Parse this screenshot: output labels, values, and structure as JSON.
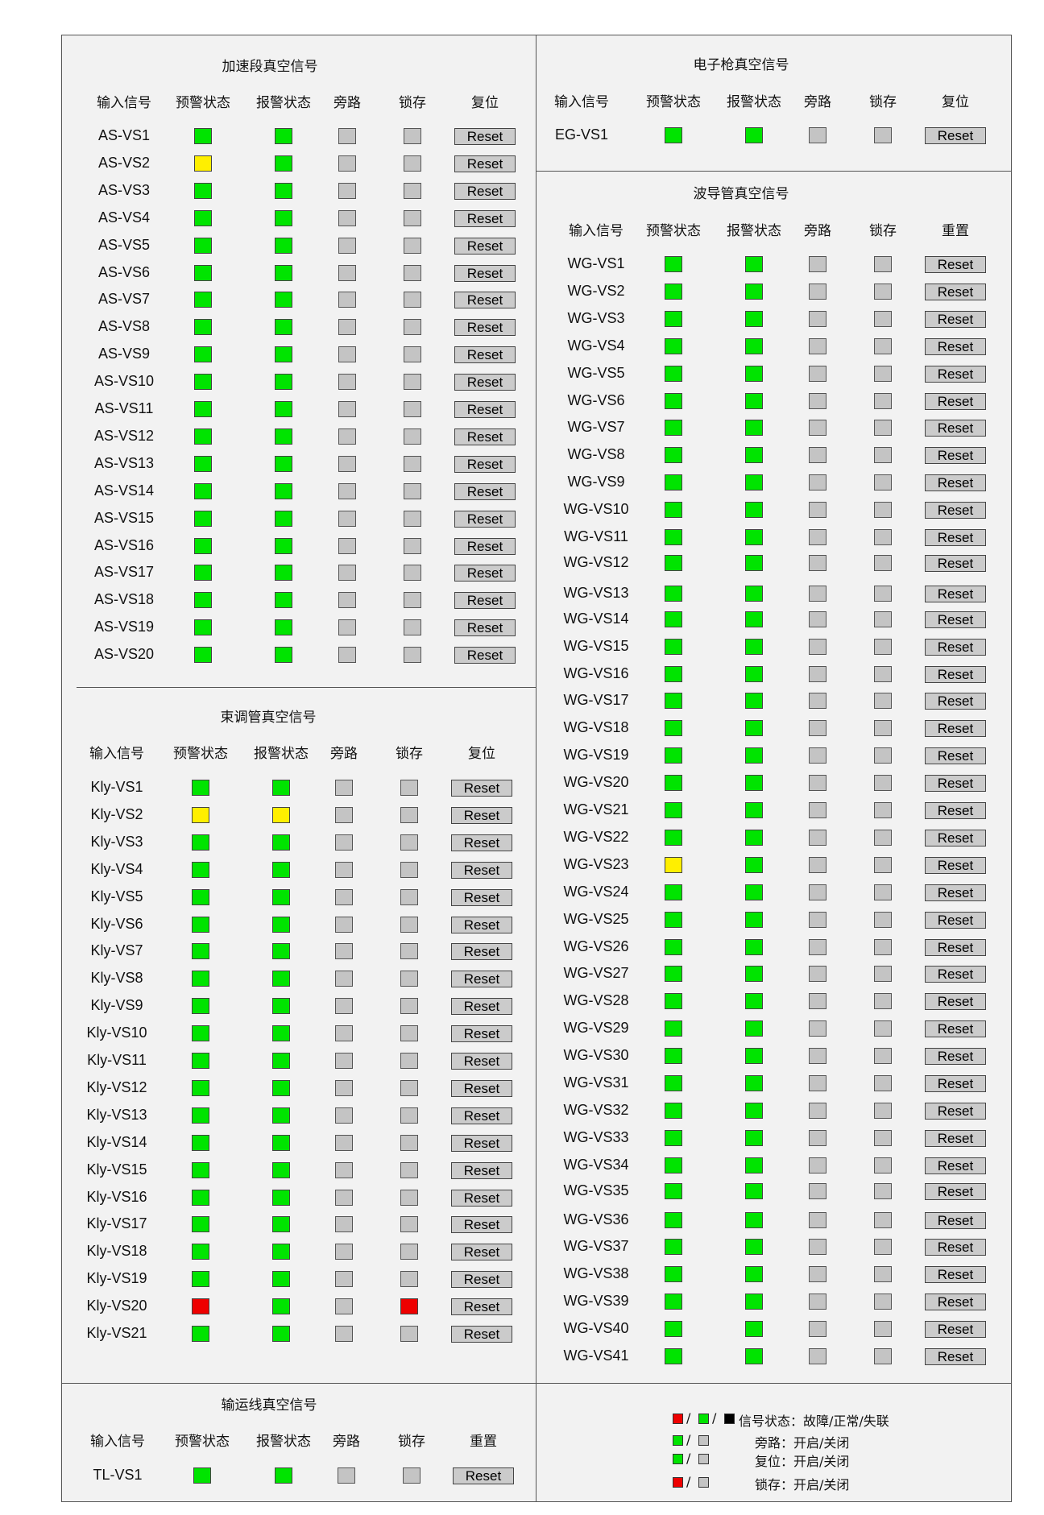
{
  "columns": [
    "输入信号",
    "预警状态",
    "报警状态",
    "旁路",
    "锁存"
  ],
  "panels": [
    {
      "id": "as",
      "title": "加速段真空信号",
      "reset_header": "复位",
      "rows": [
        {
          "label": "AS-VS1",
          "warn": "green",
          "alarm": "green",
          "bypass": "gray",
          "latch": "gray",
          "reset": "Reset"
        },
        {
          "label": "AS-VS2",
          "warn": "yellow",
          "alarm": "green",
          "bypass": "gray",
          "latch": "gray",
          "reset": "Reset"
        },
        {
          "label": "AS-VS3",
          "warn": "green",
          "alarm": "green",
          "bypass": "gray",
          "latch": "gray",
          "reset": "Reset"
        },
        {
          "label": "AS-VS4",
          "warn": "green",
          "alarm": "green",
          "bypass": "gray",
          "latch": "gray",
          "reset": "Reset"
        },
        {
          "label": "AS-VS5",
          "warn": "green",
          "alarm": "green",
          "bypass": "gray",
          "latch": "gray",
          "reset": "Reset"
        },
        {
          "label": "AS-VS6",
          "warn": "green",
          "alarm": "green",
          "bypass": "gray",
          "latch": "gray",
          "reset": "Reset"
        },
        {
          "label": "AS-VS7",
          "warn": "green",
          "alarm": "green",
          "bypass": "gray",
          "latch": "gray",
          "reset": "Reset"
        },
        {
          "label": "AS-VS8",
          "warn": "green",
          "alarm": "green",
          "bypass": "gray",
          "latch": "gray",
          "reset": "Reset"
        },
        {
          "label": "AS-VS9",
          "warn": "green",
          "alarm": "green",
          "bypass": "gray",
          "latch": "gray",
          "reset": "Reset"
        },
        {
          "label": "AS-VS10",
          "warn": "green",
          "alarm": "green",
          "bypass": "gray",
          "latch": "gray",
          "reset": "Reset"
        },
        {
          "label": "AS-VS11",
          "warn": "green",
          "alarm": "green",
          "bypass": "gray",
          "latch": "gray",
          "reset": "Reset"
        },
        {
          "label": "AS-VS12",
          "warn": "green",
          "alarm": "green",
          "bypass": "gray",
          "latch": "gray",
          "reset": "Reset"
        },
        {
          "label": "AS-VS13",
          "warn": "green",
          "alarm": "green",
          "bypass": "gray",
          "latch": "gray",
          "reset": "Reset"
        },
        {
          "label": "AS-VS14",
          "warn": "green",
          "alarm": "green",
          "bypass": "gray",
          "latch": "gray",
          "reset": "Reset"
        },
        {
          "label": "AS-VS15",
          "warn": "green",
          "alarm": "green",
          "bypass": "gray",
          "latch": "gray",
          "reset": "Reset"
        },
        {
          "label": "AS-VS16",
          "warn": "green",
          "alarm": "green",
          "bypass": "gray",
          "latch": "gray",
          "reset": "Reset"
        },
        {
          "label": "AS-VS17",
          "warn": "green",
          "alarm": "green",
          "bypass": "gray",
          "latch": "gray",
          "reset": "Reset"
        },
        {
          "label": "AS-VS18",
          "warn": "green",
          "alarm": "green",
          "bypass": "gray",
          "latch": "gray",
          "reset": "Reset"
        },
        {
          "label": "AS-VS19",
          "warn": "green",
          "alarm": "green",
          "bypass": "gray",
          "latch": "gray",
          "reset": "Reset"
        },
        {
          "label": "AS-VS20",
          "warn": "green",
          "alarm": "green",
          "bypass": "gray",
          "latch": "gray",
          "reset": "Reset"
        }
      ]
    },
    {
      "id": "kly",
      "title": "束调管真空信号",
      "reset_header": "复位",
      "rows": [
        {
          "label": "Kly-VS1",
          "warn": "green",
          "alarm": "green",
          "bypass": "gray",
          "latch": "gray",
          "reset": "Reset"
        },
        {
          "label": "Kly-VS2",
          "warn": "yellow",
          "alarm": "yellow",
          "bypass": "gray",
          "latch": "gray",
          "reset": "Reset"
        },
        {
          "label": "Kly-VS3",
          "warn": "green",
          "alarm": "green",
          "bypass": "gray",
          "latch": "gray",
          "reset": "Reset"
        },
        {
          "label": "Kly-VS4",
          "warn": "green",
          "alarm": "green",
          "bypass": "gray",
          "latch": "gray",
          "reset": "Reset"
        },
        {
          "label": "Kly-VS5",
          "warn": "green",
          "alarm": "green",
          "bypass": "gray",
          "latch": "gray",
          "reset": "Reset"
        },
        {
          "label": "Kly-VS6",
          "warn": "green",
          "alarm": "green",
          "bypass": "gray",
          "latch": "gray",
          "reset": "Reset"
        },
        {
          "label": "Kly-VS7",
          "warn": "green",
          "alarm": "green",
          "bypass": "gray",
          "latch": "gray",
          "reset": "Reset"
        },
        {
          "label": "Kly-VS8",
          "warn": "green",
          "alarm": "green",
          "bypass": "gray",
          "latch": "gray",
          "reset": "Reset"
        },
        {
          "label": "Kly-VS9",
          "warn": "green",
          "alarm": "green",
          "bypass": "gray",
          "latch": "gray",
          "reset": "Reset"
        },
        {
          "label": "Kly-VS10",
          "warn": "green",
          "alarm": "green",
          "bypass": "gray",
          "latch": "gray",
          "reset": "Reset"
        },
        {
          "label": "Kly-VS11",
          "warn": "green",
          "alarm": "green",
          "bypass": "gray",
          "latch": "gray",
          "reset": "Reset"
        },
        {
          "label": "Kly-VS12",
          "warn": "green",
          "alarm": "green",
          "bypass": "gray",
          "latch": "gray",
          "reset": "Reset"
        },
        {
          "label": "Kly-VS13",
          "warn": "green",
          "alarm": "green",
          "bypass": "gray",
          "latch": "gray",
          "reset": "Reset"
        },
        {
          "label": "Kly-VS14",
          "warn": "green",
          "alarm": "green",
          "bypass": "gray",
          "latch": "gray",
          "reset": "Reset"
        },
        {
          "label": "Kly-VS15",
          "warn": "green",
          "alarm": "green",
          "bypass": "gray",
          "latch": "gray",
          "reset": "Reset"
        },
        {
          "label": "Kly-VS16",
          "warn": "green",
          "alarm": "green",
          "bypass": "gray",
          "latch": "gray",
          "reset": "Reset"
        },
        {
          "label": "Kly-VS17",
          "warn": "green",
          "alarm": "green",
          "bypass": "gray",
          "latch": "gray",
          "reset": "Reset"
        },
        {
          "label": "Kly-VS18",
          "warn": "green",
          "alarm": "green",
          "bypass": "gray",
          "latch": "gray",
          "reset": "Reset"
        },
        {
          "label": "Kly-VS19",
          "warn": "green",
          "alarm": "green",
          "bypass": "gray",
          "latch": "gray",
          "reset": "Reset"
        },
        {
          "label": "Kly-VS20",
          "warn": "red",
          "alarm": "green",
          "bypass": "gray",
          "latch": "red",
          "reset": "Reset"
        },
        {
          "label": "Kly-VS21",
          "warn": "green",
          "alarm": "green",
          "bypass": "gray",
          "latch": "gray",
          "reset": "Reset"
        }
      ]
    },
    {
      "id": "tl",
      "title": "输运线真空信号",
      "reset_header": "重置",
      "rows": [
        {
          "label": "TL-VS1",
          "warn": "green",
          "alarm": "green",
          "bypass": "gray",
          "latch": "gray",
          "reset": "Reset"
        }
      ]
    },
    {
      "id": "eg",
      "title": "电子枪真空信号",
      "reset_header": "复位",
      "rows": [
        {
          "label": "EG-VS1",
          "warn": "green",
          "alarm": "green",
          "bypass": "gray",
          "latch": "gray",
          "reset": "Reset"
        }
      ]
    },
    {
      "id": "wg",
      "title": "波导管真空信号",
      "reset_header": "重置",
      "rows": [
        {
          "label": "WG-VS1",
          "warn": "green",
          "alarm": "green",
          "bypass": "gray",
          "latch": "gray",
          "reset": "Reset"
        },
        {
          "label": "WG-VS2",
          "warn": "green",
          "alarm": "green",
          "bypass": "gray",
          "latch": "gray",
          "reset": "Reset"
        },
        {
          "label": "WG-VS3",
          "warn": "green",
          "alarm": "green",
          "bypass": "gray",
          "latch": "gray",
          "reset": "Reset"
        },
        {
          "label": "WG-VS4",
          "warn": "green",
          "alarm": "green",
          "bypass": "gray",
          "latch": "gray",
          "reset": "Reset"
        },
        {
          "label": "WG-VS5",
          "warn": "green",
          "alarm": "green",
          "bypass": "gray",
          "latch": "gray",
          "reset": "Reset"
        },
        {
          "label": "WG-VS6",
          "warn": "green",
          "alarm": "green",
          "bypass": "gray",
          "latch": "gray",
          "reset": "Reset"
        },
        {
          "label": "WG-VS7",
          "warn": "green",
          "alarm": "green",
          "bypass": "gray",
          "latch": "gray",
          "reset": "Reset"
        },
        {
          "label": "WG-VS8",
          "warn": "green",
          "alarm": "green",
          "bypass": "gray",
          "latch": "gray",
          "reset": "Reset"
        },
        {
          "label": "WG-VS9",
          "warn": "green",
          "alarm": "green",
          "bypass": "gray",
          "latch": "gray",
          "reset": "Reset"
        },
        {
          "label": "WG-VS10",
          "warn": "green",
          "alarm": "green",
          "bypass": "gray",
          "latch": "gray",
          "reset": "Reset"
        },
        {
          "label": "WG-VS11",
          "warn": "green",
          "alarm": "green",
          "bypass": "gray",
          "latch": "gray",
          "reset": "Reset"
        },
        {
          "label": "WG-VS12",
          "warn": "green",
          "alarm": "green",
          "bypass": "gray",
          "latch": "gray",
          "reset": "Reset"
        },
        {
          "label": "WG-VS13",
          "warn": "green",
          "alarm": "green",
          "bypass": "gray",
          "latch": "gray",
          "reset": "Reset"
        },
        {
          "label": "WG-VS14",
          "warn": "green",
          "alarm": "green",
          "bypass": "gray",
          "latch": "gray",
          "reset": "Reset"
        },
        {
          "label": "WG-VS15",
          "warn": "green",
          "alarm": "green",
          "bypass": "gray",
          "latch": "gray",
          "reset": "Reset"
        },
        {
          "label": "WG-VS16",
          "warn": "green",
          "alarm": "green",
          "bypass": "gray",
          "latch": "gray",
          "reset": "Reset"
        },
        {
          "label": "WG-VS17",
          "warn": "green",
          "alarm": "green",
          "bypass": "gray",
          "latch": "gray",
          "reset": "Reset"
        },
        {
          "label": "WG-VS18",
          "warn": "green",
          "alarm": "green",
          "bypass": "gray",
          "latch": "gray",
          "reset": "Reset"
        },
        {
          "label": "WG-VS19",
          "warn": "green",
          "alarm": "green",
          "bypass": "gray",
          "latch": "gray",
          "reset": "Reset"
        },
        {
          "label": "WG-VS20",
          "warn": "green",
          "alarm": "green",
          "bypass": "gray",
          "latch": "gray",
          "reset": "Reset"
        },
        {
          "label": "WG-VS21",
          "warn": "green",
          "alarm": "green",
          "bypass": "gray",
          "latch": "gray",
          "reset": "Reset"
        },
        {
          "label": "WG-VS22",
          "warn": "green",
          "alarm": "green",
          "bypass": "gray",
          "latch": "gray",
          "reset": "Reset"
        },
        {
          "label": "WG-VS23",
          "warn": "yellow",
          "alarm": "green",
          "bypass": "gray",
          "latch": "gray",
          "reset": "Reset"
        },
        {
          "label": "WG-VS24",
          "warn": "green",
          "alarm": "green",
          "bypass": "gray",
          "latch": "gray",
          "reset": "Reset"
        },
        {
          "label": "WG-VS25",
          "warn": "green",
          "alarm": "green",
          "bypass": "gray",
          "latch": "gray",
          "reset": "Reset"
        },
        {
          "label": "WG-VS26",
          "warn": "green",
          "alarm": "green",
          "bypass": "gray",
          "latch": "gray",
          "reset": "Reset"
        },
        {
          "label": "WG-VS27",
          "warn": "green",
          "alarm": "green",
          "bypass": "gray",
          "latch": "gray",
          "reset": "Reset"
        },
        {
          "label": "WG-VS28",
          "warn": "green",
          "alarm": "green",
          "bypass": "gray",
          "latch": "gray",
          "reset": "Reset"
        },
        {
          "label": "WG-VS29",
          "warn": "green",
          "alarm": "green",
          "bypass": "gray",
          "latch": "gray",
          "reset": "Reset"
        },
        {
          "label": "WG-VS30",
          "warn": "green",
          "alarm": "green",
          "bypass": "gray",
          "latch": "gray",
          "reset": "Reset"
        },
        {
          "label": "WG-VS31",
          "warn": "green",
          "alarm": "green",
          "bypass": "gray",
          "latch": "gray",
          "reset": "Reset"
        },
        {
          "label": "WG-VS32",
          "warn": "green",
          "alarm": "green",
          "bypass": "gray",
          "latch": "gray",
          "reset": "Reset"
        },
        {
          "label": "WG-VS33",
          "warn": "green",
          "alarm": "green",
          "bypass": "gray",
          "latch": "gray",
          "reset": "Reset"
        },
        {
          "label": "WG-VS34",
          "warn": "green",
          "alarm": "green",
          "bypass": "gray",
          "latch": "gray",
          "reset": "Reset"
        },
        {
          "label": "WG-VS35",
          "warn": "green",
          "alarm": "green",
          "bypass": "gray",
          "latch": "gray",
          "reset": "Reset"
        },
        {
          "label": "WG-VS36",
          "warn": "green",
          "alarm": "green",
          "bypass": "gray",
          "latch": "gray",
          "reset": "Reset"
        },
        {
          "label": "WG-VS37",
          "warn": "green",
          "alarm": "green",
          "bypass": "gray",
          "latch": "gray",
          "reset": "Reset"
        },
        {
          "label": "WG-VS38",
          "warn": "green",
          "alarm": "green",
          "bypass": "gray",
          "latch": "gray",
          "reset": "Reset"
        },
        {
          "label": "WG-VS39",
          "warn": "green",
          "alarm": "green",
          "bypass": "gray",
          "latch": "gray",
          "reset": "Reset"
        },
        {
          "label": "WG-VS40",
          "warn": "green",
          "alarm": "green",
          "bypass": "gray",
          "latch": "gray",
          "reset": "Reset"
        },
        {
          "label": "WG-VS41",
          "warn": "green",
          "alarm": "green",
          "bypass": "gray",
          "latch": "gray",
          "reset": "Reset"
        }
      ]
    }
  ],
  "legend": [
    {
      "swatches": [
        "red",
        "green",
        "black"
      ],
      "text": "信号状态：故障/正常/失联"
    },
    {
      "swatches": [
        "green",
        "gray"
      ],
      "text": "旁路：开启/关闭"
    },
    {
      "swatches": [
        "green",
        "gray"
      ],
      "text": "复位：开启/关闭"
    },
    {
      "swatches": [
        "red",
        "gray"
      ],
      "text": "锁存：开启/关闭"
    }
  ],
  "colors": {
    "green": "#00e400",
    "yellow": "#ffef00",
    "red": "#ee0000",
    "gray": "#c4c4c4",
    "black": "#000000"
  }
}
